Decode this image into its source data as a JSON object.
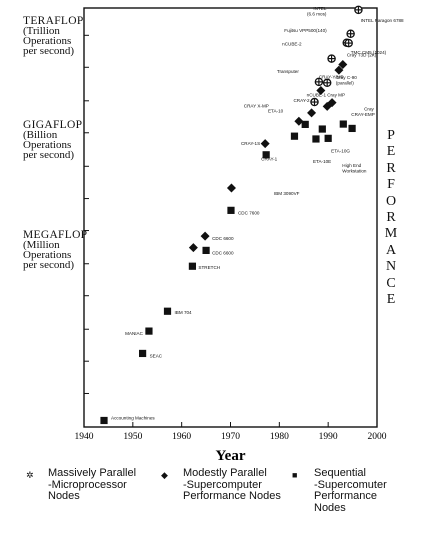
{
  "chart_data": {
    "type": "scatter",
    "xlabel": "Year",
    "ylabel": "",
    "xlim": [
      1940,
      2000
    ],
    "x_ticks": [
      "1940",
      "1950",
      "1960",
      "1970",
      "1980",
      "1990",
      "2000"
    ],
    "ylim_log": [
      -0.05,
      13.45
    ],
    "y_ticks_log": [
      -0.05,
      1.03,
      2.07,
      3.1,
      4.18,
      5.21,
      6.28,
      7.31,
      8.35,
      9.43,
      10.46,
      11.54,
      12.57
    ],
    "y_levels": [
      {
        "title": "TERAFLOP",
        "lines": [
          "(Trillion",
          "Operations",
          "per second)"
        ]
      },
      {
        "title": "GIGAFLOP",
        "lines": [
          "(Billion",
          "Operations",
          "per second)"
        ]
      },
      {
        "title": "MEGAFLOP",
        "lines": [
          "(Million",
          "Operations",
          "per second)"
        ]
      }
    ],
    "side_label": "PERFORMANCE",
    "series": [
      {
        "name": "Massively Parallel -Microprocessor Nodes",
        "marker": "circle-cross",
        "points": [
          {
            "x": 1996.2,
            "y": 13.39,
            "label": "INTEL (6.6 mos)"
          },
          {
            "x": 1994.6,
            "y": 12.62,
            "label": "INTEL Paragon 6788"
          },
          {
            "x": 1993.8,
            "y": 12.33,
            "label": "TMC CM5 (1024)"
          },
          {
            "x": 1994.2,
            "y": 12.32,
            "label": "Fujitsu VPP500(140)"
          },
          {
            "x": 1990.7,
            "y": 11.82,
            "label": "nCUBE-2"
          },
          {
            "x": 1988.1,
            "y": 11.07,
            "label": "Transputer"
          },
          {
            "x": 1989.8,
            "y": 11.04,
            "label": ""
          },
          {
            "x": 1987.2,
            "y": 10.42,
            "label": ""
          }
        ]
      },
      {
        "name": "Modestly Parallel -Supercomputer Performance Nodes",
        "marker": "diamond",
        "points": [
          {
            "x": 1993.0,
            "y": 11.63,
            "label": "Cray T3D (2K)"
          },
          {
            "x": 1992.2,
            "y": 11.45,
            "label": "Cray C-90 (parallel)"
          },
          {
            "x": 1988.5,
            "y": 10.79,
            "label": "CRAY-Y/MP"
          },
          {
            "x": 1990.8,
            "y": 10.4,
            "label": "nCUBE-1"
          },
          {
            "x": 1989.8,
            "y": 10.28,
            "label": "Cray MP"
          },
          {
            "x": 1986.6,
            "y": 10.07,
            "label": "CRAY-2"
          },
          {
            "x": 1984.0,
            "y": 9.8,
            "label": "CRAY X-MP"
          },
          {
            "x": 1977.1,
            "y": 9.08,
            "label": "CRAY-1"
          },
          {
            "x": 1970.2,
            "y": 7.65,
            "label": ""
          },
          {
            "x": 1964.8,
            "y": 6.1,
            "label": "CDC 6600"
          },
          {
            "x": 1962.4,
            "y": 5.73,
            "label": ""
          }
        ]
      },
      {
        "name": "Sequential -Supercomputer Performance Nodes",
        "marker": "square",
        "points": [
          {
            "x": 1994.9,
            "y": 9.57,
            "label": "Cray"
          },
          {
            "x": 1993.1,
            "y": 9.71,
            "label": "CRAY-EMP"
          },
          {
            "x": 1990.0,
            "y": 9.25,
            "label": "ETA-10G"
          },
          {
            "x": 1988.8,
            "y": 9.55,
            "label": "High End Workstation"
          },
          {
            "x": 1987.5,
            "y": 9.23,
            "label": "ETA-10E"
          },
          {
            "x": 1985.3,
            "y": 9.7,
            "label": "ETA-10"
          },
          {
            "x": 1983.1,
            "y": 9.32,
            "label": "IBM 3090VF"
          },
          {
            "x": 1977.3,
            "y": 8.72,
            "label": "CRAY-1S"
          },
          {
            "x": 1970.1,
            "y": 6.93,
            "label": "CDC 7600"
          },
          {
            "x": 1965.0,
            "y": 5.64,
            "label": "CDC 6600"
          },
          {
            "x": 1962.2,
            "y": 5.13,
            "label": "STRETCH"
          },
          {
            "x": 1957.1,
            "y": 3.68,
            "label": "IBM 704"
          },
          {
            "x": 1953.3,
            "y": 3.04,
            "label": "MANIAC"
          },
          {
            "x": 1952.0,
            "y": 2.32,
            "label": "SEAC"
          },
          {
            "x": 1944.1,
            "y": 0.16,
            "label": "Accounting Machines"
          }
        ]
      }
    ]
  },
  "legend": [
    {
      "marker": "circle-cross",
      "text": "Massively Parallel\n-Microprocessor\nNodes"
    },
    {
      "marker": "diamond",
      "text": "Modestly Parallel\n-Supercomputer\nPerformance Nodes"
    },
    {
      "marker": "square",
      "text": "Sequential\n-Supercomuter\nPerformance\nNodes"
    }
  ]
}
